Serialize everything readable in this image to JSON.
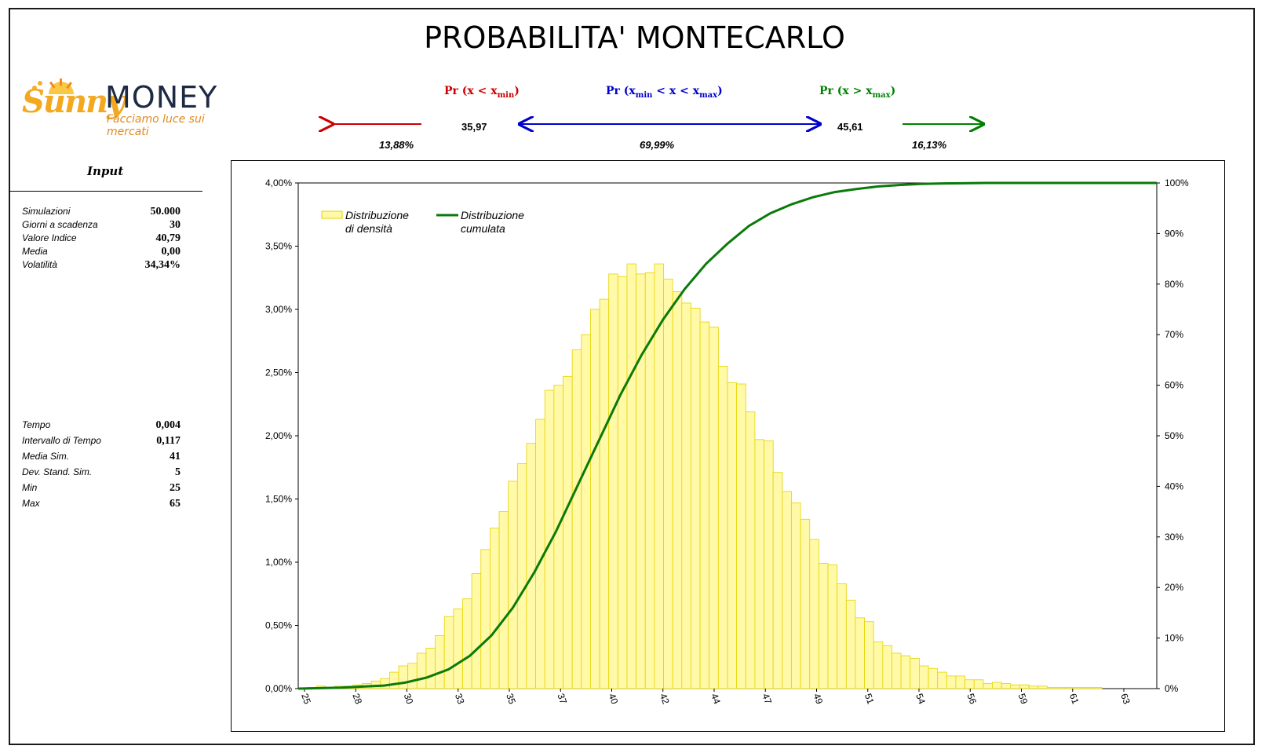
{
  "title": "PROBABILITA' MONTECARLO",
  "logo": {
    "word1": "Sunny",
    "word2": "MONEY",
    "tagline": "Facciamo luce sui mercati"
  },
  "probabilities": {
    "left": {
      "label": "Pr (x < x",
      "sub": "min",
      "close": ")",
      "color": "#cc0000",
      "value": "13,88%"
    },
    "middle": {
      "label_a": "Pr (x",
      "sub_a": "min",
      "label_b": " < x < x",
      "sub_b": "max",
      "close": ")",
      "color": "#0000cc",
      "value": "69,99%"
    },
    "right": {
      "label": "Pr (x > x",
      "sub": "max",
      "close": ")",
      "color": "#008000",
      "value": "16,13%"
    },
    "xmin": "35,97",
    "xmax": "45,61"
  },
  "input": {
    "title": "Input",
    "params1": [
      {
        "label": "Simulazioni",
        "value": "50.000"
      },
      {
        "label": "Giorni a scadenza",
        "value": "30"
      },
      {
        "label": "Valore Indice",
        "value": "40,79"
      },
      {
        "label": "Media",
        "value": "0,00"
      },
      {
        "label": "Volatilità",
        "value": "34,34%"
      }
    ],
    "params2": [
      {
        "label": "Tempo",
        "value": "0,004"
      },
      {
        "label": "Intervallo di Tempo",
        "value": "0,117"
      },
      {
        "label": "Media Sim.",
        "value": "41"
      },
      {
        "label": "Dev. Stand. Sim.",
        "value": "5"
      },
      {
        "label": "Min",
        "value": "25"
      },
      {
        "label": "Max",
        "value": "65"
      }
    ]
  },
  "chart_data": {
    "type": "bar",
    "legend": [
      {
        "name": "Distribuzione di densità",
        "line1": "Distribuzione",
        "line2": "di densità",
        "color": "#fff9a8",
        "border": "#e5d400"
      },
      {
        "name": "Distribuzione cumulata",
        "line1": "Distribuzione",
        "line2": "cumulata",
        "color": "#0a7a0a"
      }
    ],
    "legend_position": "top-left",
    "x_ticks": [
      "25",
      "28",
      "30",
      "33",
      "35",
      "37",
      "40",
      "42",
      "44",
      "47",
      "49",
      "51",
      "54",
      "56",
      "59",
      "61",
      "63"
    ],
    "x_range": [
      25,
      65
    ],
    "y_left": {
      "min": 0,
      "max": 0.04,
      "ticks": [
        "0,00%",
        "0,50%",
        "1,00%",
        "1,50%",
        "2,00%",
        "2,50%",
        "3,00%",
        "3,50%",
        "4,00%"
      ]
    },
    "y_right": {
      "min": 0,
      "max": 1,
      "ticks": [
        "0%",
        "10%",
        "20%",
        "30%",
        "40%",
        "50%",
        "60%",
        "70%",
        "80%",
        "90%",
        "100%"
      ]
    },
    "density": [
      0.0,
      0.0001,
      0.0002,
      0.0001,
      0.0002,
      0.0002,
      0.0003,
      0.0004,
      0.0006,
      0.0008,
      0.0013,
      0.0018,
      0.002,
      0.0028,
      0.0032,
      0.0042,
      0.0057,
      0.0063,
      0.0071,
      0.0091,
      0.011,
      0.0127,
      0.014,
      0.0164,
      0.0178,
      0.0194,
      0.0213,
      0.0236,
      0.024,
      0.0247,
      0.0268,
      0.028,
      0.03,
      0.0308,
      0.0328,
      0.0326,
      0.0336,
      0.0328,
      0.0329,
      0.0336,
      0.0324,
      0.0314,
      0.0305,
      0.0301,
      0.029,
      0.0286,
      0.0255,
      0.0242,
      0.0241,
      0.0219,
      0.0197,
      0.0196,
      0.0171,
      0.0156,
      0.0147,
      0.0134,
      0.0118,
      0.0099,
      0.0098,
      0.0083,
      0.007,
      0.0056,
      0.0053,
      0.0037,
      0.0034,
      0.0028,
      0.0026,
      0.0024,
      0.0018,
      0.0016,
      0.0013,
      0.001,
      0.001,
      0.0007,
      0.0007,
      0.0004,
      0.0005,
      0.0004,
      0.0003,
      0.0003,
      0.0002,
      0.0002,
      0.0001,
      0.0001,
      0.0001,
      0.0001,
      0.0001,
      0.0001,
      0.0,
      0.0,
      0.0,
      0.0,
      0.0,
      0.0
    ],
    "cumulative": [
      [
        25.0,
        0.0
      ],
      [
        26.0,
        0.001
      ],
      [
        27.0,
        0.002
      ],
      [
        28.0,
        0.004
      ],
      [
        29.0,
        0.006
      ],
      [
        30.0,
        0.012
      ],
      [
        31.0,
        0.022
      ],
      [
        32.0,
        0.038
      ],
      [
        33.0,
        0.065
      ],
      [
        34.0,
        0.105
      ],
      [
        35.0,
        0.16
      ],
      [
        36.0,
        0.23
      ],
      [
        37.0,
        0.31
      ],
      [
        38.0,
        0.4
      ],
      [
        39.0,
        0.49
      ],
      [
        40.0,
        0.58
      ],
      [
        41.0,
        0.66
      ],
      [
        42.0,
        0.73
      ],
      [
        43.0,
        0.79
      ],
      [
        44.0,
        0.84
      ],
      [
        45.0,
        0.88
      ],
      [
        46.0,
        0.915
      ],
      [
        47.0,
        0.94
      ],
      [
        48.0,
        0.958
      ],
      [
        49.0,
        0.972
      ],
      [
        50.0,
        0.982
      ],
      [
        51.0,
        0.988
      ],
      [
        52.0,
        0.993
      ],
      [
        53.0,
        0.996
      ],
      [
        54.0,
        0.998
      ],
      [
        55.0,
        0.999
      ],
      [
        56.0,
        0.9995
      ],
      [
        57.0,
        1.0
      ],
      [
        65.0,
        1.0
      ]
    ]
  }
}
